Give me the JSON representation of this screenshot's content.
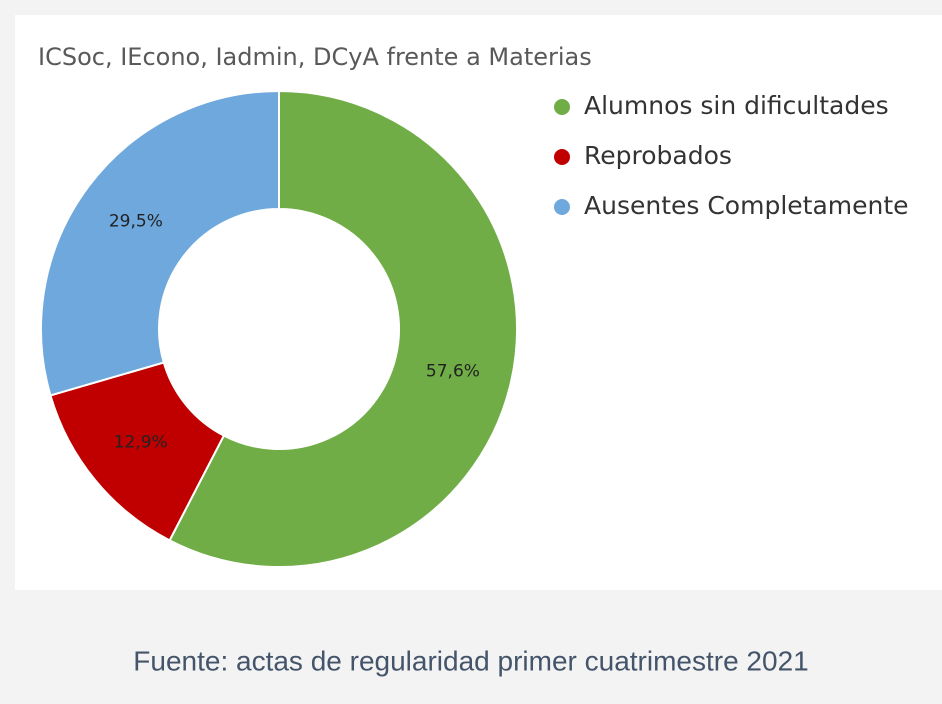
{
  "chart_data": {
    "type": "pie",
    "title": "ICSoc, IEcono, Iadmin, DCyA frente a Materias",
    "categories": [
      "Alumnos sin dificultades",
      "Reprobados",
      "Ausentes Completamente"
    ],
    "values": [
      57.6,
      12.9,
      29.5
    ],
    "value_labels": [
      "57,6%",
      "12,9%",
      "29,5%"
    ],
    "colors": [
      "#70ad47",
      "#c00000",
      "#6fa8dc"
    ],
    "legend": "right"
  },
  "caption": "Fuente: actas de regularidad primer cuatrimestre 2021"
}
